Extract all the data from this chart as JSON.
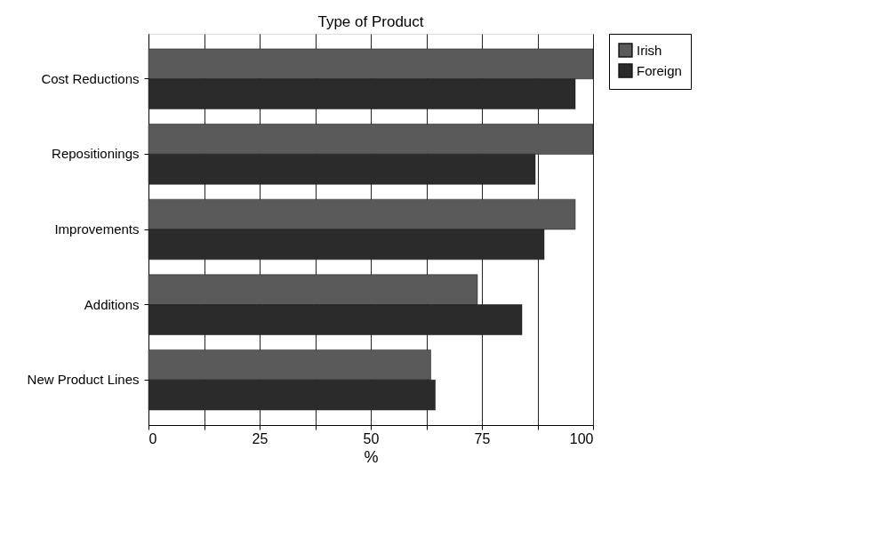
{
  "chart_data": {
    "type": "bar",
    "orientation": "horizontal",
    "title": "Type of Product",
    "xlabel": "%",
    "categories": [
      "Cost Reductions",
      "Repositionings",
      "Improvements",
      "Additions",
      "New Product Lines"
    ],
    "series": [
      {
        "name": "Irish",
        "color": "#5a5a5a",
        "values": [
          100,
          100,
          96,
          74,
          63.5
        ]
      },
      {
        "name": "Foreign",
        "color": "#2b2b2b",
        "values": [
          96,
          87,
          89,
          84,
          64.5
        ]
      }
    ],
    "xlim": [
      0,
      100
    ],
    "xticks": [
      0,
      {
        "value": 12.5,
        "label": null
      },
      25,
      {
        "value": 37.5,
        "label": null
      },
      50,
      {
        "value": 62.5,
        "label": null
      },
      75,
      {
        "value": 87.5,
        "label": null
      },
      100
    ],
    "grid": "x",
    "legend": "right"
  }
}
